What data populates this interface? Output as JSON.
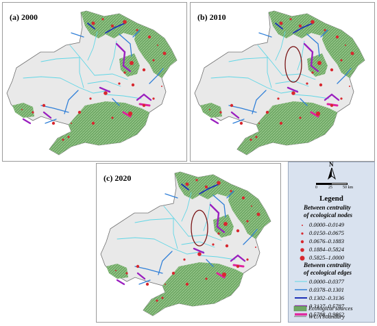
{
  "panels": [
    {
      "id": "a",
      "label": "(a) 2000"
    },
    {
      "id": "b",
      "label": "(b) 2010"
    },
    {
      "id": "c",
      "label": "(c) 2020"
    }
  ],
  "legend": {
    "north": "N",
    "scale_ticks": [
      "0",
      "25",
      "50 km"
    ],
    "title": "Legend",
    "nodes_heading": "Between centrality of ecological nodes",
    "nodes_heading_l1": "Between centrality",
    "nodes_heading_l2": "of ecological nodes",
    "node_classes": [
      "0.0000–0.0149",
      "0.0150–0.0675",
      "0.0676–0.1883",
      "0.1884–0.5824",
      "0.5825–1.0000"
    ],
    "edges_heading_l1": "Between centrality",
    "edges_heading_l2": "of ecological edges",
    "edge_classes": [
      "0.0000–0.0377",
      "0.0378–0.1301",
      "0.1302–0.3136",
      "0.3137–0.5787",
      "0.5788–0.9862"
    ],
    "sources_label": "Ecological sources",
    "boundary_label": "WUA boundary"
  },
  "colors": {
    "boundary_fill": "#e9e9e9",
    "boundary_stroke": "#6f6f6f",
    "ecological_source": "#6fa865",
    "node": "#d7282f",
    "edge_classes": [
      "#5fd6e6",
      "#2f7fd8",
      "#1c2fb6",
      "#9a1fbf",
      "#e0239e"
    ],
    "highlight_ellipse": "#7a1416"
  }
}
